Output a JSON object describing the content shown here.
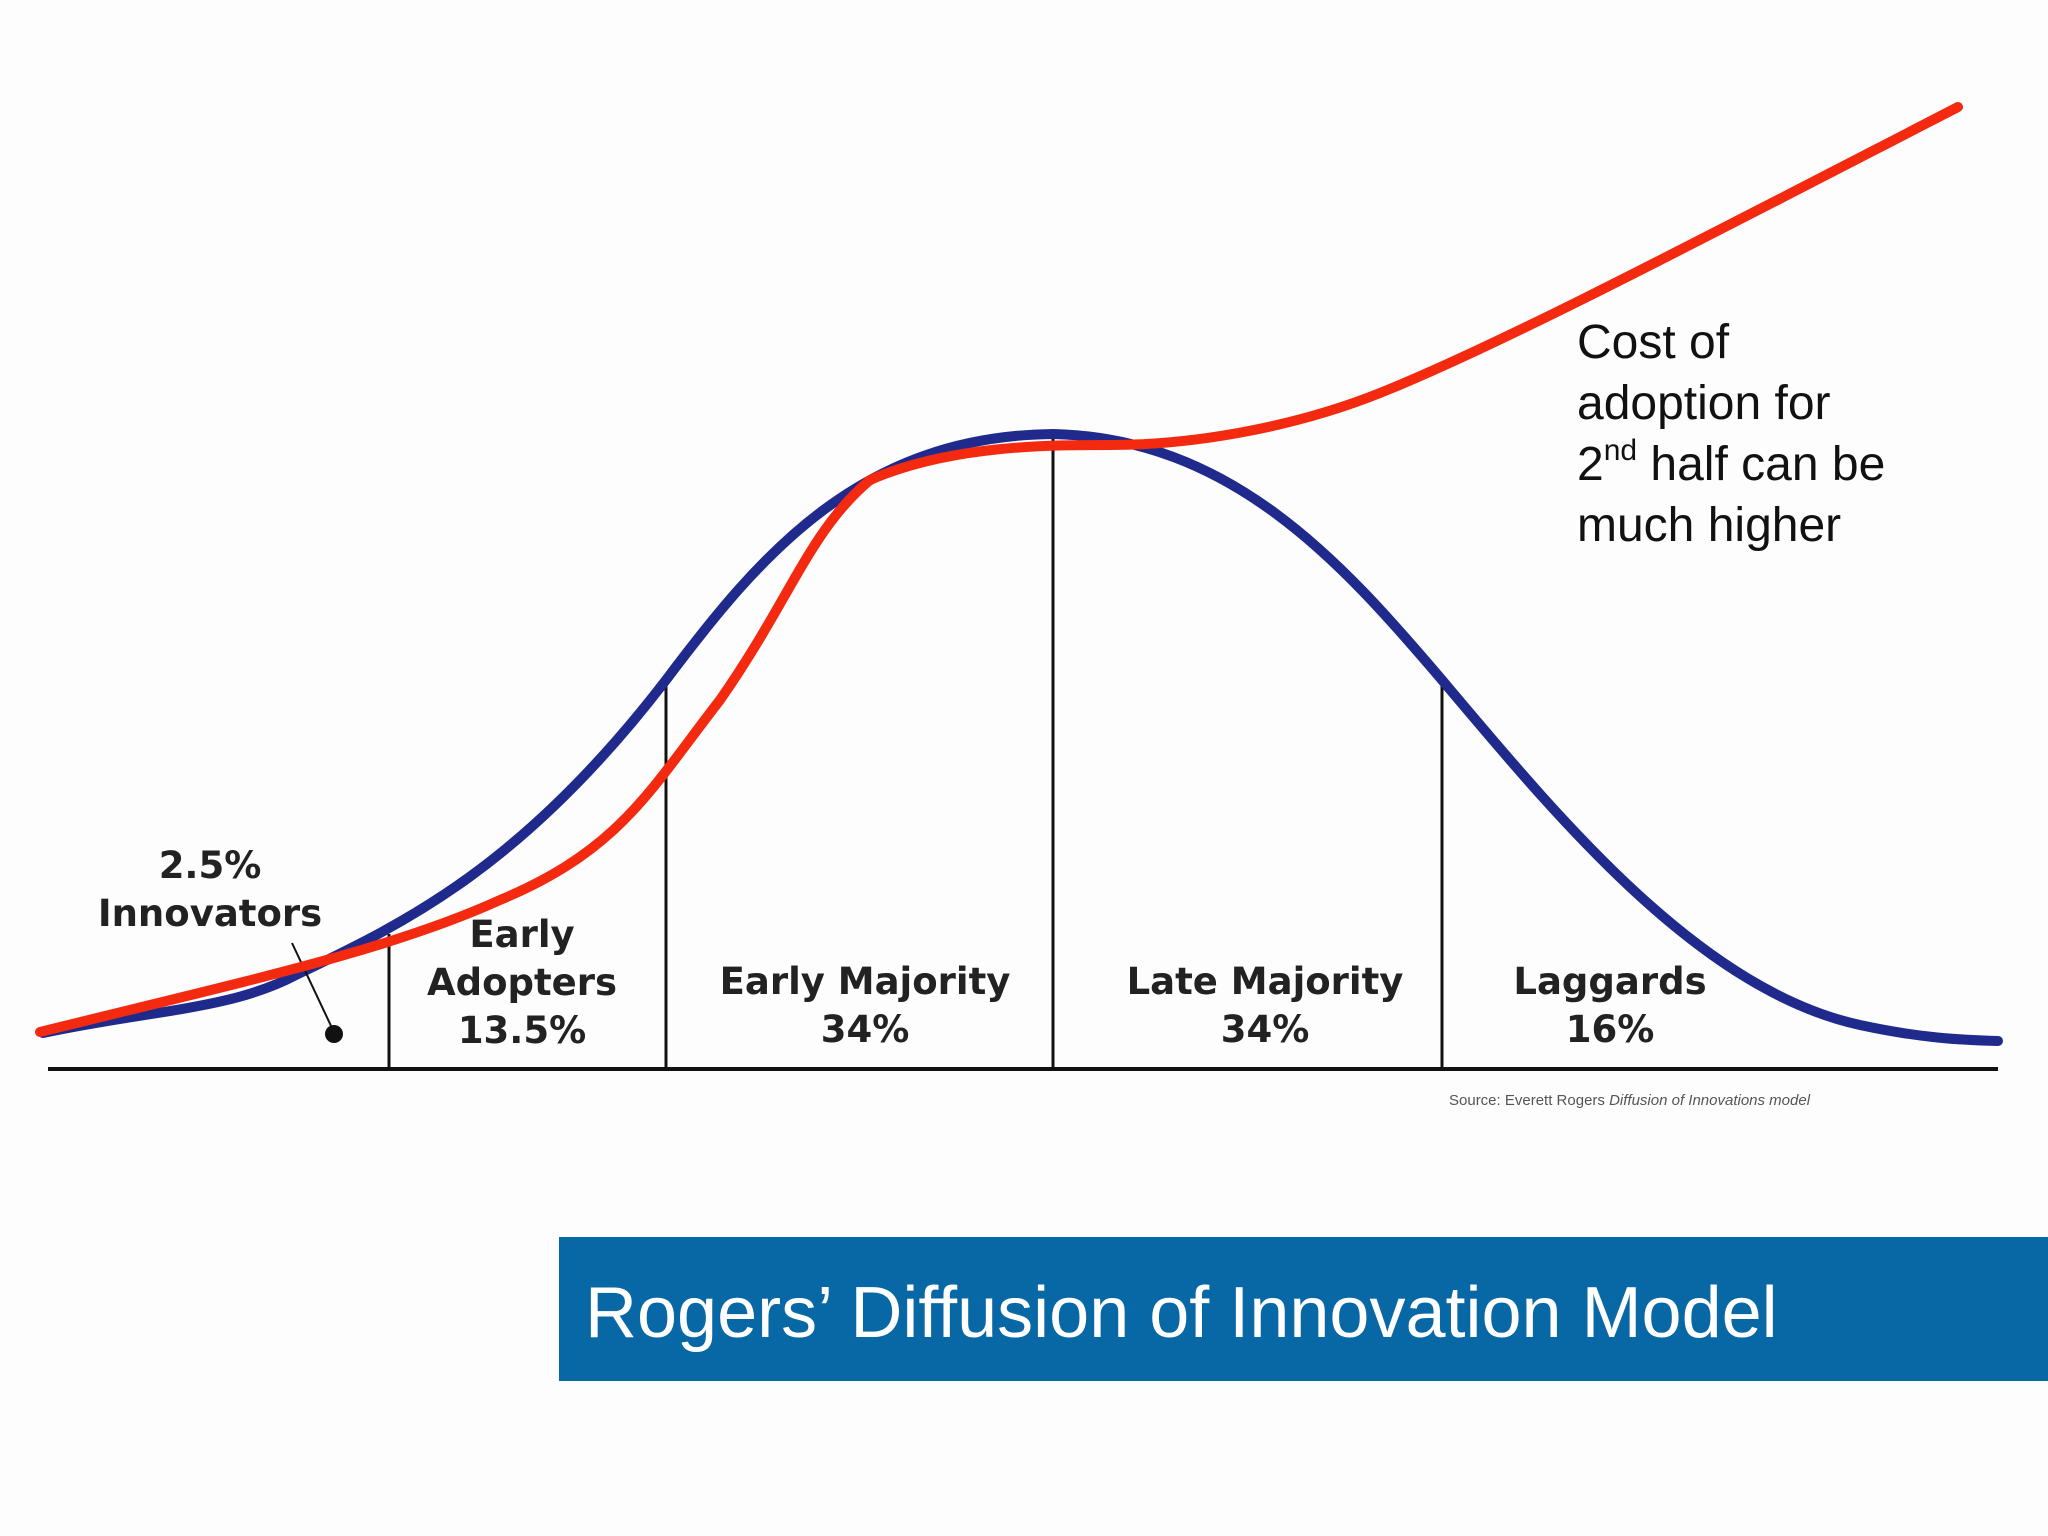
{
  "segments": [
    {
      "name": "Innovators",
      "share": "2.5%",
      "percent_value": 2.5
    },
    {
      "name": "Early Adopters",
      "name_line1": "Early",
      "name_line2": "Adopters",
      "share": "13.5%",
      "percent_value": 13.5
    },
    {
      "name": "Early Majority",
      "share": "34%",
      "percent_value": 34
    },
    {
      "name": "Late Majority",
      "share": "34%",
      "percent_value": 34
    },
    {
      "name": "Laggards",
      "share": "16%",
      "percent_value": 16
    }
  ],
  "annotation": {
    "line1": "Cost of",
    "line2": "adoption for",
    "line3_num": "2",
    "line3_sup": "nd",
    "line3_rest": " half can be",
    "line4": "much higher"
  },
  "source": {
    "prefix": "Source: Everett Rogers",
    "work": "Diffusion of Innovations model"
  },
  "title": "Rogers’ Diffusion of Innovation Model",
  "colors": {
    "bell_curve": "#1f2a8c",
    "cost_curve": "#f42a10",
    "axis": "#111111",
    "title_bar": "#0867a5",
    "title_text": "#ffffff"
  }
}
